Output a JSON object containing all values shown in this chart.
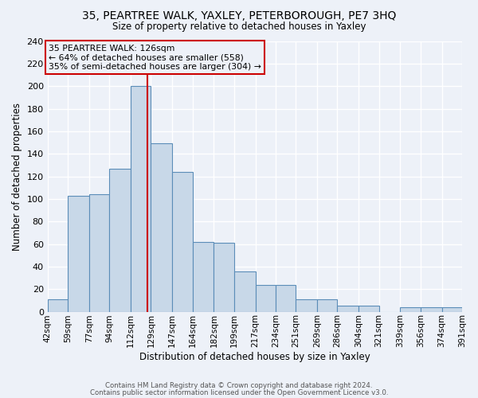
{
  "title1": "35, PEARTREE WALK, YAXLEY, PETERBOROUGH, PE7 3HQ",
  "title2": "Size of property relative to detached houses in Yaxley",
  "xlabel": "Distribution of detached houses by size in Yaxley",
  "ylabel": "Number of detached properties",
  "footnote1": "Contains HM Land Registry data © Crown copyright and database right 2024.",
  "footnote2": "Contains public sector information licensed under the Open Government Licence v3.0.",
  "bin_edges": [
    42,
    59,
    77,
    94,
    112,
    129,
    147,
    164,
    182,
    199,
    217,
    234,
    251,
    269,
    286,
    304,
    321,
    339,
    356,
    374,
    391
  ],
  "bin_labels": [
    "42sqm",
    "59sqm",
    "77sqm",
    "94sqm",
    "112sqm",
    "129sqm",
    "147sqm",
    "164sqm",
    "182sqm",
    "199sqm",
    "217sqm",
    "234sqm",
    "251sqm",
    "269sqm",
    "286sqm",
    "304sqm",
    "321sqm",
    "339sqm",
    "356sqm",
    "374sqm",
    "391sqm"
  ],
  "bar_heights": [
    11,
    103,
    104,
    127,
    200,
    149,
    124,
    62,
    61,
    36,
    24,
    24,
    11,
    11,
    5,
    5,
    0,
    4,
    4,
    4
  ],
  "bar_color": "#c8d8e8",
  "bar_edge_color": "#5b8db8",
  "annotation_box_text": "35 PEARTREE WALK: 126sqm\n← 64% of detached houses are smaller (558)\n35% of semi-detached houses are larger (304) →",
  "vline_x": 126,
  "vline_color": "#cc0000",
  "ylim": [
    0,
    240
  ],
  "yticks": [
    0,
    20,
    40,
    60,
    80,
    100,
    120,
    140,
    160,
    180,
    200,
    220,
    240
  ],
  "background_color": "#edf1f8",
  "grid_color": "#ffffff",
  "ann_box_edge_color": "#cc0000"
}
